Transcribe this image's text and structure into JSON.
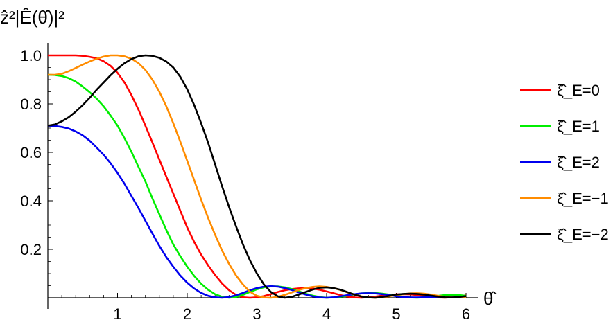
{
  "chart_data": {
    "type": "line",
    "xlabel": "θ̂",
    "ylabel": "ẑ²|Ê(θ̂)|²",
    "xlim": [
      0,
      6.1
    ],
    "ylim": [
      -0.02,
      1.04
    ],
    "x_ticks": [
      1,
      2,
      3,
      4,
      5,
      6
    ],
    "x_tick_labels": [
      "1",
      "2",
      "3",
      "4",
      "5",
      "6"
    ],
    "y_ticks": [
      0.2,
      0.4,
      0.6,
      0.8,
      1.0
    ],
    "y_tick_labels": [
      "0.2",
      "0.4",
      "0.6",
      "0.8",
      "1.0"
    ],
    "legend_position": "right",
    "grid": false,
    "x": [
      0.0,
      0.1,
      0.2,
      0.3,
      0.4,
      0.5,
      0.6,
      0.7,
      0.8,
      0.9,
      1.0,
      1.1,
      1.2,
      1.3,
      1.4,
      1.5,
      1.6,
      1.7,
      1.8,
      1.9,
      2.0,
      2.1,
      2.2,
      2.3,
      2.4,
      2.5,
      2.6,
      2.7,
      2.8,
      2.9,
      3.0,
      3.1,
      3.2,
      3.3,
      3.4,
      3.5,
      3.6,
      3.7,
      3.8,
      3.9,
      4.0,
      4.1,
      4.2,
      4.3,
      4.4,
      4.5,
      4.6,
      4.7,
      4.8,
      4.9,
      5.0,
      5.1,
      5.2,
      5.3,
      5.4,
      5.5,
      5.6,
      5.7,
      5.8,
      5.9,
      6.0
    ],
    "series": [
      {
        "name": "ξ̂_E=0",
        "color": "#ff0000",
        "values": [
          1.0,
          1.0,
          1.0,
          1.0,
          1.0,
          0.998,
          0.994,
          0.988,
          0.976,
          0.957,
          0.928,
          0.888,
          0.836,
          0.776,
          0.71,
          0.641,
          0.57,
          0.5,
          0.43,
          0.36,
          0.29,
          0.23,
          0.178,
          0.134,
          0.094,
          0.059,
          0.031,
          0.012,
          0.002,
          0.0,
          0.002,
          0.007,
          0.015,
          0.024,
          0.031,
          0.036,
          0.039,
          0.04,
          0.038,
          0.033,
          0.026,
          0.019,
          0.011,
          0.005,
          0.001,
          0.0,
          0.002,
          0.005,
          0.009,
          0.012,
          0.014,
          0.015,
          0.014,
          0.011,
          0.008,
          0.004,
          0.001,
          0.0,
          0.002,
          0.006,
          0.01
        ]
      },
      {
        "name": "ξ̂_E=1",
        "color": "#00ee00",
        "values": [
          0.92,
          0.919,
          0.915,
          0.906,
          0.892,
          0.871,
          0.848,
          0.822,
          0.79,
          0.752,
          0.71,
          0.658,
          0.602,
          0.54,
          0.48,
          0.41,
          0.345,
          0.28,
          0.22,
          0.172,
          0.128,
          0.09,
          0.058,
          0.033,
          0.015,
          0.004,
          0.0,
          0.003,
          0.012,
          0.024,
          0.035,
          0.043,
          0.047,
          0.047,
          0.043,
          0.036,
          0.027,
          0.017,
          0.009,
          0.003,
          0.0,
          0.001,
          0.004,
          0.009,
          0.014,
          0.018,
          0.02,
          0.02,
          0.017,
          0.013,
          0.008,
          0.004,
          0.001,
          0.0,
          0.002,
          0.005,
          0.008,
          0.011,
          0.012,
          0.011,
          0.008
        ]
      },
      {
        "name": "ξ̂_E=2",
        "color": "#0000ee",
        "values": [
          0.71,
          0.709,
          0.705,
          0.698,
          0.686,
          0.67,
          0.648,
          0.62,
          0.59,
          0.555,
          0.515,
          0.47,
          0.42,
          0.37,
          0.318,
          0.265,
          0.214,
          0.168,
          0.128,
          0.092,
          0.062,
          0.038,
          0.02,
          0.008,
          0.002,
          0.0,
          0.003,
          0.01,
          0.02,
          0.031,
          0.04,
          0.046,
          0.048,
          0.046,
          0.04,
          0.032,
          0.022,
          0.013,
          0.006,
          0.001,
          0.0,
          0.002,
          0.006,
          0.011,
          0.015,
          0.018,
          0.019,
          0.018,
          0.015,
          0.011,
          0.006,
          0.003,
          0.001,
          0.001,
          0.002,
          0.003,
          0.004,
          0.004,
          0.004,
          0.003,
          0.002
        ]
      },
      {
        "name": "ξ̂_E=−1",
        "color": "#ff8c00",
        "values": [
          0.92,
          0.92,
          0.924,
          0.935,
          0.948,
          0.962,
          0.975,
          0.986,
          0.995,
          1.0,
          1.0,
          0.996,
          0.986,
          0.968,
          0.94,
          0.9,
          0.85,
          0.79,
          0.72,
          0.645,
          0.565,
          0.485,
          0.405,
          0.33,
          0.26,
          0.195,
          0.14,
          0.092,
          0.055,
          0.025,
          0.008,
          0.001,
          0.0,
          0.004,
          0.012,
          0.022,
          0.032,
          0.04,
          0.045,
          0.047,
          0.045,
          0.04,
          0.032,
          0.022,
          0.013,
          0.006,
          0.001,
          0.0,
          0.002,
          0.006,
          0.011,
          0.015,
          0.018,
          0.019,
          0.017,
          0.013,
          0.008,
          0.004,
          0.001,
          0.001,
          0.004
        ]
      },
      {
        "name": "ξ̂_E=−2",
        "color": "#000000",
        "values": [
          0.71,
          0.715,
          0.728,
          0.745,
          0.768,
          0.795,
          0.825,
          0.858,
          0.888,
          0.918,
          0.945,
          0.968,
          0.985,
          0.996,
          1.0,
          0.998,
          0.99,
          0.975,
          0.95,
          0.912,
          0.86,
          0.795,
          0.72,
          0.64,
          0.55,
          0.46,
          0.375,
          0.295,
          0.22,
          0.155,
          0.1,
          0.055,
          0.024,
          0.006,
          0.0,
          0.004,
          0.013,
          0.024,
          0.034,
          0.041,
          0.043,
          0.04,
          0.033,
          0.023,
          0.013,
          0.005,
          0.001,
          0.0,
          0.003,
          0.008,
          0.013,
          0.016,
          0.017,
          0.016,
          0.013,
          0.009,
          0.005,
          0.002,
          0.001,
          0.003,
          0.007
        ]
      }
    ]
  }
}
